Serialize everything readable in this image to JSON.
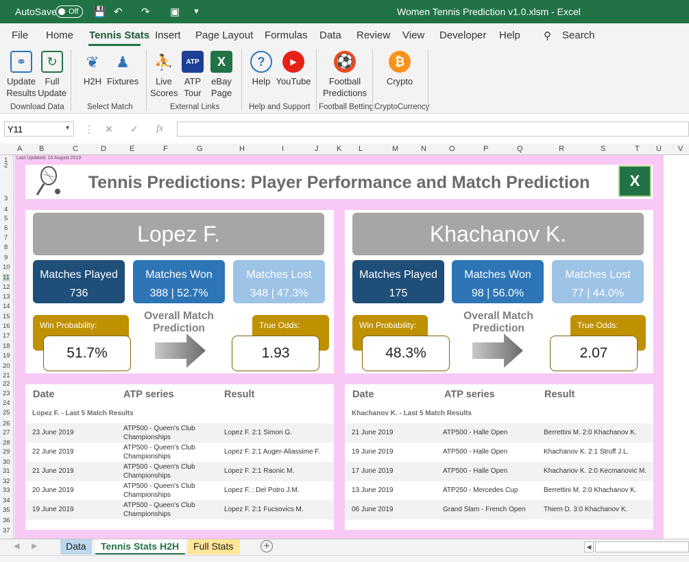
{
  "titlebar": {
    "autosave_label": "AutoSave",
    "toggle_state": "Off",
    "window_title": "Women Tennis Prediction v1.0.xlsm  -  Excel"
  },
  "menu": {
    "items": [
      "File",
      "Home",
      "Tennis Stats",
      "Insert",
      "Page Layout",
      "Formulas",
      "Data",
      "Review",
      "View",
      "Developer",
      "Help"
    ],
    "search_label": "Search"
  },
  "ribbon": {
    "update_results": "Update Results",
    "full_update": "Full Update",
    "group_download": "Download Data",
    "h2h": "H2H",
    "fixtures": "Fixtures",
    "group_select": "Select Match",
    "live_scores": "Live Scores",
    "atp_tour": "ATP Tour",
    "ebay_page": "eBay Page",
    "group_links": "External Links",
    "help": "Help",
    "youtube": "YouTube",
    "group_help": "Help and Support",
    "football": "Football Predictions",
    "group_football": "Football Betting",
    "crypto": "Crypto",
    "group_crypto": "CryptoCurrency"
  },
  "formula": {
    "cell_ref": "Y11",
    "content": ""
  },
  "columns": [
    "A",
    "B",
    "C",
    "D",
    "E",
    "F",
    "G",
    "H",
    "I",
    "J",
    "K",
    "L",
    "M",
    "N",
    "O",
    "P",
    "Q",
    "R",
    "S",
    "T",
    "U",
    "V"
  ],
  "sheet": {
    "last_updated": "Last Updated: 15 August 2019",
    "title": "Tennis Predictions: Player Performance and Match Prediction",
    "omp_label": "Overall Match Prediction",
    "win_prob_label": "Win Probability:",
    "true_odds_label": "True Odds:",
    "mp_label": "Matches Played",
    "mw_label": "Matches Won",
    "ml_label": "Matches Lost",
    "hdr_date": "Date",
    "hdr_series": "ATP series",
    "hdr_result": "Result",
    "players": [
      {
        "name": "Lopez F.",
        "played": "736",
        "won": "388 | 52.7%",
        "lost": "348 | 47.3%",
        "win_probability": "51.7%",
        "true_odds": "1.93",
        "results_title": "Lopez F. - Last 5 Match Results",
        "results": [
          {
            "date": "23 June 2019",
            "series": "ATP500 - Queen's Club Championships",
            "result": "Lopez F. 2:1 Simon G."
          },
          {
            "date": "22 June 2019",
            "series": "ATP500 - Queen's Club Championships",
            "result": "Lopez F. 2:1 Auger-Aliassime F."
          },
          {
            "date": "21 June 2019",
            "series": "ATP500 - Queen's Club Championships",
            "result": "Lopez F. 2:1 Raonic M."
          },
          {
            "date": "20 June 2019",
            "series": "ATP500 - Queen's Club Championships",
            "result": "Lopez F. : Del Potro J.M."
          },
          {
            "date": "19 June 2019",
            "series": "ATP500 - Queen's Club Championships",
            "result": "Lopez F. 2:1 Fucsovics M."
          }
        ]
      },
      {
        "name": "Khachanov K.",
        "played": "175",
        "won": "98 | 56.0%",
        "lost": "77 | 44.0%",
        "win_probability": "48.3%",
        "true_odds": "2.07",
        "results_title": "Khachanov K. - Last 5 Match Results",
        "results": [
          {
            "date": "21 June 2019",
            "series": "ATP500 - Halle Open",
            "result": "Berrettini M. 2:0 Khachanov K."
          },
          {
            "date": "19 June 2019",
            "series": "ATP500 - Halle Open",
            "result": "Khachanov K. 2:1 Struff J.L."
          },
          {
            "date": "17 June 2019",
            "series": "ATP500 - Halle Open",
            "result": "Khachanov K. 2:0 Kecmanovic M."
          },
          {
            "date": "13 June 2019",
            "series": "ATP250 - Mercedes Cup",
            "result": "Berrettini M. 2:0 Khachanov K."
          },
          {
            "date": "06 June 2019",
            "series": "Grand Slam - French Open",
            "result": "Thiem D. 3:0 Khachanov K."
          }
        ]
      }
    ]
  },
  "tabs": [
    "Data",
    "Tennis Stats H2H",
    "Full Stats"
  ],
  "colors": {
    "excel_green": "#217346",
    "sheet_bg": "#f9c9f5",
    "dark_blue": "#1f4e79",
    "mid_blue": "#2e75b6",
    "light_blue": "#9dc3e6",
    "gold": "#bf9000"
  }
}
